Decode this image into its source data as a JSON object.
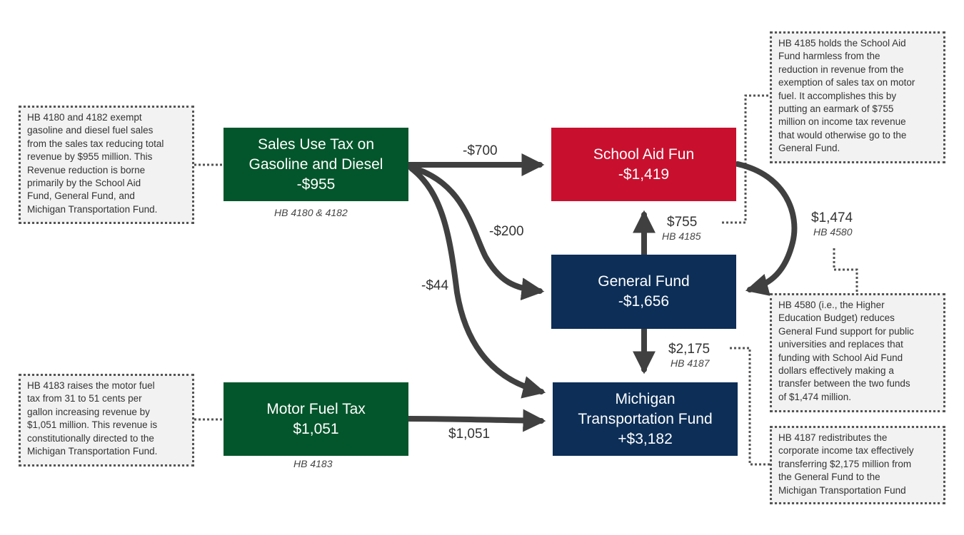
{
  "colors": {
    "green": "#03562b",
    "red": "#c8102e",
    "navy": "#0c2e57",
    "arrow": "#404040",
    "note_border": "#555555",
    "note_fill": "#f2f2f2"
  },
  "boxes": {
    "sales_tax": {
      "line1": "Sales Use Tax on",
      "line2": "Gasoline and Diesel",
      "amount": "-$955",
      "caption": "HB 4180 & 4182"
    },
    "motor_fuel": {
      "line1": "Motor Fuel Tax",
      "amount": "$1,051",
      "caption": "HB 4183"
    },
    "school_aid": {
      "line1": "School Aid Fun",
      "amount": "-$1,419"
    },
    "general_fund": {
      "line1": "General Fund",
      "amount": "-$1,656"
    },
    "mtf": {
      "line1": "Michigan",
      "line2": "Transportation Fund",
      "amount": "+$3,182"
    }
  },
  "flows": {
    "sales_to_school": {
      "amount": "-$700"
    },
    "sales_to_general": {
      "amount": "-$200"
    },
    "sales_to_mtf": {
      "amount": "-$44"
    },
    "motor_to_mtf": {
      "amount": "$1,051"
    },
    "general_to_school": {
      "amount": "$755",
      "bill": "HB 4185"
    },
    "school_to_general": {
      "amount": "$1,474",
      "bill": "HB 4580"
    },
    "general_to_mtf": {
      "amount": "$2,175",
      "bill": "HB 4187"
    }
  },
  "notes": {
    "sales_tax": "HB 4180 and 4182 exempt\ngasoline and diesel fuel sales\nfrom the sales tax reducing total\nrevenue by $955 million. This\nRevenue reduction is borne\nprimarily by the School Aid\nFund, General Fund, and\nMichigan Transportation Fund.",
    "motor_fuel": "HB 4183 raises the motor fuel\ntax from 31 to 51 cents per\ngallon increasing revenue by\n$1,051 million. This revenue is\nconstitutionally directed to the\nMichigan Transportation Fund.",
    "hb4185": "HB 4185 holds the School Aid\nFund harmless from the\nreduction in revenue from the\nexemption of sales tax on motor\nfuel. It accomplishes this by\nputting an earmark of $755\nmillion on income tax revenue\nthat would otherwise go to the\nGeneral Fund.",
    "hb4580": "HB 4580 (i.e., the Higher\nEducation Budget) reduces\nGeneral Fund support for public\nuniversities and replaces that\nfunding with School Aid Fund\ndollars effectively making a\ntransfer between the two funds\nof $1,474 million.",
    "hb4187": "HB 4187 redistributes the\ncorporate income tax effectively\ntransferring $2,175 million from\nthe General Fund to the\nMichigan Transportation Fund"
  }
}
